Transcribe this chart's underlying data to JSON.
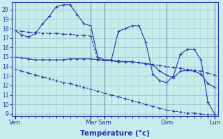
{
  "background_color": "#c8ecec",
  "grid_color": "#a0b8c8",
  "line_color": "#2233aa",
  "ylim": [
    8.8,
    20.8
  ],
  "yticks": [
    9,
    10,
    11,
    12,
    13,
    14,
    15,
    16,
    17,
    18,
    19,
    20
  ],
  "xlabel": "Température (°c)",
  "day_labels": [
    "Ven",
    "Mar",
    "Sam",
    "Dim",
    "Lun"
  ],
  "day_positions": [
    0,
    11,
    13,
    22,
    29
  ],
  "n_points": 30,
  "line1_x": [
    0,
    1,
    2,
    3,
    4,
    5,
    6,
    7,
    8,
    9,
    10,
    11,
    12,
    13,
    14,
    15,
    16,
    17,
    18,
    19,
    20,
    21,
    22,
    23,
    24,
    25,
    26,
    27,
    28,
    29
  ],
  "line1": [
    17.8,
    17.3,
    17.1,
    17.5,
    18.5,
    19.3,
    20.3,
    20.5,
    20.5,
    19.5,
    18.5,
    18.3,
    15.0,
    14.7,
    14.7,
    17.7,
    18.0,
    18.3,
    18.3,
    16.5,
    13.2,
    12.5,
    12.3,
    13.0,
    15.3,
    15.8,
    15.8,
    14.7,
    10.2,
    9.0
  ],
  "line2": [
    17.8,
    17.7,
    17.6,
    17.6,
    17.5,
    17.5,
    17.5,
    17.4,
    17.4,
    17.3,
    17.3,
    17.2,
    14.8,
    14.7,
    14.6,
    14.6,
    14.5,
    14.5,
    14.4,
    14.3,
    14.2,
    14.1,
    14.0,
    13.9,
    13.8,
    13.7,
    13.6,
    13.5,
    13.3,
    13.1
  ],
  "line3": [
    15.0,
    14.9,
    14.8,
    14.7,
    14.7,
    14.7,
    14.7,
    14.7,
    14.8,
    14.8,
    14.8,
    14.8,
    14.7,
    14.6,
    14.6,
    14.5,
    14.5,
    14.5,
    14.4,
    14.3,
    14.2,
    13.5,
    13.1,
    12.8,
    13.5,
    13.6,
    13.5,
    13.2,
    12.2,
    11.8
  ],
  "line4": [
    13.7,
    13.5,
    13.3,
    13.1,
    12.9,
    12.7,
    12.5,
    12.3,
    12.2,
    12.0,
    11.8,
    11.6,
    11.4,
    11.2,
    11.0,
    10.8,
    10.6,
    10.4,
    10.2,
    10.0,
    9.8,
    9.6,
    9.4,
    9.3,
    9.2,
    9.1,
    9.1,
    9.0,
    8.9,
    8.9
  ]
}
